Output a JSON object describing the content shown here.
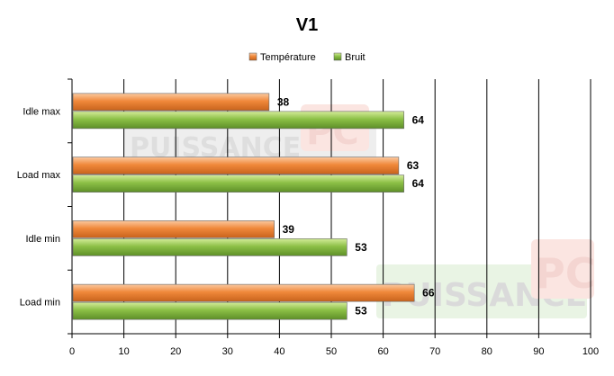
{
  "chart_data": {
    "type": "bar",
    "orientation": "horizontal",
    "title": "V1",
    "categories": [
      "Idle  max",
      "Load max",
      "Idle  min",
      "Load min"
    ],
    "series": [
      {
        "name": "Température",
        "values": [
          38,
          63,
          39,
          66
        ],
        "color": "#f0883a"
      },
      {
        "name": "Bruit",
        "values": [
          64,
          64,
          53,
          53
        ],
        "color": "#8cc046"
      }
    ],
    "xlim": [
      0,
      100
    ],
    "xticks": [
      0,
      10,
      20,
      30,
      40,
      50,
      60,
      70,
      80,
      90,
      100
    ],
    "grid": "vertical",
    "legend_position": "top"
  },
  "watermark": {
    "text": "PUISSANCE",
    "badge": "PC"
  }
}
